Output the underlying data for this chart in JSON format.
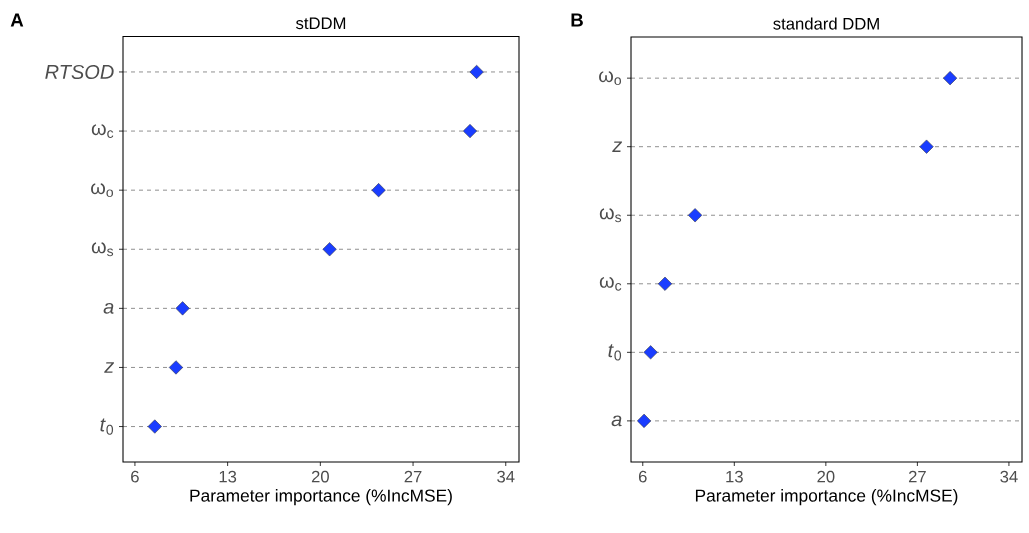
{
  "chart_data": [
    {
      "type": "scatter",
      "orientation": "horizontal",
      "title": "stDDM",
      "xlabel": "Parameter importance (%IncMSE)",
      "annotations": [
        "A"
      ],
      "categories": [
        "*RTSOD*",
        "ω$_{c}$",
        "ω$_{o}$",
        "ω$_{s}$",
        "*a*",
        "*z*",
        "*t*$_{0}$"
      ],
      "values": [
        31.8,
        31.3,
        24.4,
        20.7,
        9.6,
        9.1,
        7.5
      ],
      "color": "#1a3dff",
      "marker": "diamond",
      "grid": "y",
      "xlim": [
        5.1,
        35
      ],
      "xticks": [
        6,
        13,
        20,
        27,
        34
      ]
    },
    {
      "type": "scatter",
      "orientation": "horizontal",
      "title": "standard DDM",
      "xlabel": "Parameter importance (%IncMSE)",
      "annotations": [
        "B"
      ],
      "categories": [
        "ω$_{o}$",
        "*z*",
        "ω$_{s}$",
        "ω$_{c}$",
        "*t*$_{0}$",
        "*a*"
      ],
      "values": [
        29.5,
        27.7,
        10.0,
        7.7,
        6.6,
        6.1
      ],
      "color": "#1a3dff",
      "marker": "diamond",
      "grid": "y",
      "xlim": [
        5.1,
        35
      ],
      "xticks": [
        6,
        13,
        20,
        27,
        34
      ]
    }
  ]
}
